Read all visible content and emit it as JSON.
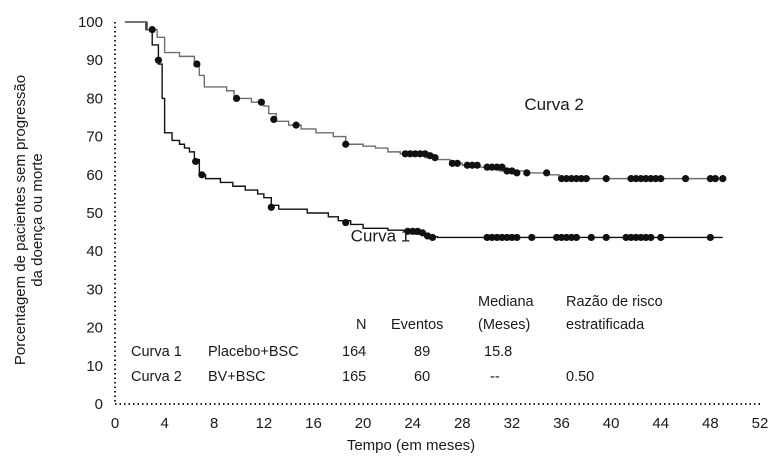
{
  "chart_data": {
    "type": "line",
    "title": "",
    "xlabel": "Tempo (em meses)",
    "ylabel_lines": [
      "Porcentagem de pacientes sem progressão",
      "da doença ou morte"
    ],
    "xlim": [
      0,
      52
    ],
    "ylim": [
      0,
      100
    ],
    "xticks": [
      0,
      4,
      8,
      12,
      16,
      20,
      24,
      28,
      32,
      36,
      40,
      44,
      48,
      52
    ],
    "yticks": [
      0,
      10,
      20,
      30,
      40,
      50,
      60,
      70,
      80,
      90,
      100
    ],
    "grid": false,
    "series": [
      {
        "name": "Curva 1",
        "color": "#111111",
        "steps": [
          [
            0.8,
            100
          ],
          [
            2.5,
            98
          ],
          [
            3.0,
            94
          ],
          [
            3.5,
            89
          ],
          [
            3.8,
            80
          ],
          [
            4.0,
            71
          ],
          [
            4.6,
            69
          ],
          [
            5.2,
            68
          ],
          [
            5.6,
            67
          ],
          [
            6.0,
            66
          ],
          [
            6.4,
            64
          ],
          [
            6.8,
            60
          ],
          [
            7.3,
            59
          ],
          [
            8.5,
            58
          ],
          [
            9.5,
            57
          ],
          [
            10.5,
            56
          ],
          [
            11.5,
            55
          ],
          [
            12.0,
            54
          ],
          [
            12.6,
            52
          ],
          [
            13.2,
            51
          ],
          [
            15.5,
            50
          ],
          [
            17.2,
            49
          ],
          [
            18.0,
            48
          ],
          [
            19.0,
            47
          ],
          [
            20.0,
            46
          ],
          [
            22.0,
            45.5
          ],
          [
            23.5,
            45
          ],
          [
            24.2,
            44.5
          ],
          [
            25.0,
            44
          ],
          [
            25.5,
            43.8
          ],
          [
            26.0,
            43.6
          ],
          [
            49,
            43.6
          ]
        ],
        "censored": [
          [
            3.5,
            90
          ],
          [
            6.5,
            63.5
          ],
          [
            7.0,
            60
          ],
          [
            12.6,
            51.5
          ],
          [
            18.6,
            47.5
          ],
          [
            23.6,
            45.2
          ],
          [
            24.0,
            45.2
          ],
          [
            24.4,
            45.2
          ],
          [
            24.8,
            44.8
          ],
          [
            25.2,
            44
          ],
          [
            25.6,
            43.6
          ],
          [
            30.0,
            43.6
          ],
          [
            30.4,
            43.6
          ],
          [
            30.8,
            43.6
          ],
          [
            31.2,
            43.6
          ],
          [
            31.6,
            43.6
          ],
          [
            32.0,
            43.6
          ],
          [
            32.4,
            43.6
          ],
          [
            33.6,
            43.6
          ],
          [
            35.6,
            43.6
          ],
          [
            36.0,
            43.6
          ],
          [
            36.4,
            43.6
          ],
          [
            36.8,
            43.6
          ],
          [
            37.2,
            43.6
          ],
          [
            38.4,
            43.6
          ],
          [
            39.6,
            43.6
          ],
          [
            41.2,
            43.6
          ],
          [
            41.6,
            43.6
          ],
          [
            42.0,
            43.6
          ],
          [
            42.4,
            43.6
          ],
          [
            42.8,
            43.6
          ],
          [
            43.2,
            43.6
          ],
          [
            44.0,
            43.6
          ],
          [
            48.0,
            43.6
          ]
        ]
      },
      {
        "name": "Curva 2",
        "color": "#6e6e6e",
        "steps": [
          [
            0.8,
            100
          ],
          [
            2.6,
            98
          ],
          [
            3.4,
            96
          ],
          [
            4.0,
            92
          ],
          [
            5.2,
            91
          ],
          [
            6.4,
            89
          ],
          [
            6.8,
            86
          ],
          [
            7.2,
            83
          ],
          [
            9.0,
            82
          ],
          [
            9.6,
            80
          ],
          [
            11.0,
            79
          ],
          [
            12.0,
            78
          ],
          [
            12.4,
            76
          ],
          [
            13.0,
            74
          ],
          [
            14.0,
            73
          ],
          [
            15.0,
            72
          ],
          [
            16.2,
            71
          ],
          [
            17.6,
            70
          ],
          [
            18.6,
            68
          ],
          [
            20.0,
            67.5
          ],
          [
            21.0,
            67
          ],
          [
            22.0,
            66
          ],
          [
            23.0,
            65.5
          ],
          [
            24.0,
            65
          ],
          [
            25.0,
            64.5
          ],
          [
            26.0,
            64
          ],
          [
            27.0,
            63
          ],
          [
            28.0,
            62.5
          ],
          [
            29.0,
            62
          ],
          [
            30.0,
            61.5
          ],
          [
            31.0,
            61
          ],
          [
            33.0,
            60.5
          ],
          [
            35.0,
            60
          ],
          [
            35.8,
            59
          ],
          [
            49,
            59
          ]
        ],
        "censored": [
          [
            3.0,
            98
          ],
          [
            6.6,
            89
          ],
          [
            9.8,
            80
          ],
          [
            11.8,
            79
          ],
          [
            12.8,
            74.5
          ],
          [
            14.6,
            73
          ],
          [
            18.6,
            68
          ],
          [
            23.4,
            65.5
          ],
          [
            23.8,
            65.5
          ],
          [
            24.2,
            65.5
          ],
          [
            24.6,
            65.5
          ],
          [
            25.0,
            65.5
          ],
          [
            25.4,
            65
          ],
          [
            25.8,
            64.5
          ],
          [
            27.2,
            63
          ],
          [
            27.6,
            63
          ],
          [
            28.4,
            62.5
          ],
          [
            28.8,
            62.5
          ],
          [
            29.2,
            62.5
          ],
          [
            30.0,
            62
          ],
          [
            30.4,
            62
          ],
          [
            30.8,
            62
          ],
          [
            31.2,
            62
          ],
          [
            31.6,
            61
          ],
          [
            32.0,
            61
          ],
          [
            32.4,
            60.5
          ],
          [
            33.2,
            60.5
          ],
          [
            34.8,
            60.5
          ],
          [
            36.0,
            59
          ],
          [
            36.4,
            59
          ],
          [
            36.8,
            59
          ],
          [
            37.2,
            59
          ],
          [
            37.6,
            59
          ],
          [
            38.0,
            59
          ],
          [
            39.6,
            59
          ],
          [
            41.6,
            59
          ],
          [
            42.0,
            59
          ],
          [
            42.4,
            59
          ],
          [
            42.8,
            59
          ],
          [
            43.2,
            59
          ],
          [
            43.6,
            59
          ],
          [
            44.0,
            59
          ],
          [
            46.0,
            59
          ],
          [
            48.0,
            59
          ],
          [
            48.4,
            59
          ],
          [
            49.0,
            59
          ]
        ]
      }
    ],
    "annotations": [
      {
        "text": "Curva 2",
        "x": 33,
        "y": 77
      },
      {
        "text": "Curva 1",
        "x": 19,
        "y": 42.5
      }
    ],
    "table": {
      "headers": [
        {
          "line1": "",
          "line2": "N"
        },
        {
          "line1": "",
          "line2": "Eventos"
        },
        {
          "line1": "Mediana",
          "line2": "(Meses)"
        },
        {
          "line1": "Razão de risco",
          "line2": "estratificada"
        }
      ],
      "rows": [
        {
          "curve": "Curva 1",
          "arm": "Placebo+BSC",
          "n": "164",
          "events": "89",
          "median": "15.8",
          "hr": ""
        },
        {
          "curve": "Curva 2",
          "arm": "BV+BSC",
          "n": "165",
          "events": "60",
          "median": "--",
          "hr": "0.50"
        }
      ]
    }
  }
}
